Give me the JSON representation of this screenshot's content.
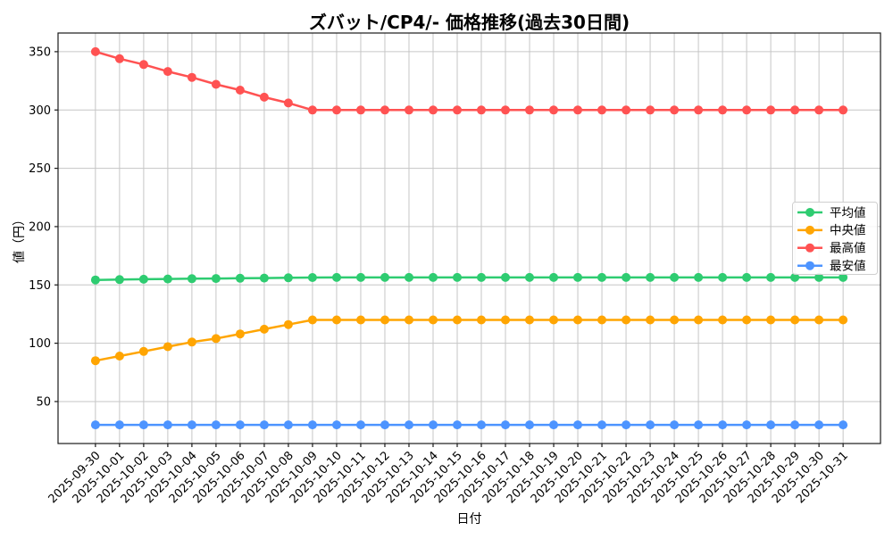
{
  "page": {
    "background": "#ffffff"
  },
  "chart_data": {
    "type": "line",
    "title": "ズバット/CP4/- 価格推移(過去30日間)",
    "xlabel": "日付",
    "ylabel": "値（円）",
    "grid": true,
    "legend_loc": "center right",
    "x_tick_rotation": 45,
    "ylim": [
      14,
      366
    ],
    "yticks": [
      50,
      100,
      150,
      200,
      250,
      300,
      350
    ],
    "x": [
      "2025-09-30",
      "2025-10-01",
      "2025-10-02",
      "2025-10-03",
      "2025-10-04",
      "2025-10-05",
      "2025-10-06",
      "2025-10-07",
      "2025-10-08",
      "2025-10-09",
      "2025-10-10",
      "2025-10-11",
      "2025-10-12",
      "2025-10-13",
      "2025-10-14",
      "2025-10-15",
      "2025-10-16",
      "2025-10-17",
      "2025-10-18",
      "2025-10-19",
      "2025-10-20",
      "2025-10-21",
      "2025-10-22",
      "2025-10-23",
      "2025-10-24",
      "2025-10-25",
      "2025-10-26",
      "2025-10-27",
      "2025-10-28",
      "2025-10-29",
      "2025-10-30",
      "2025-10-31"
    ],
    "series": [
      {
        "key": "average",
        "name": "平均値",
        "color": "#2ecc71",
        "values": [
          154.3,
          154.6,
          154.9,
          155.1,
          155.3,
          155.5,
          155.7,
          155.9,
          156.1,
          156.3,
          156.4,
          156.4,
          156.4,
          156.4,
          156.4,
          156.4,
          156.4,
          156.4,
          156.4,
          156.4,
          156.4,
          156.4,
          156.4,
          156.4,
          156.4,
          156.4,
          156.4,
          156.4,
          156.4,
          156.4,
          156.4,
          156.4
        ]
      },
      {
        "key": "median",
        "name": "中央値",
        "color": "#ffa502",
        "values": [
          85,
          89,
          93,
          97,
          101,
          104,
          108,
          112,
          116,
          120,
          120,
          120,
          120,
          120,
          120,
          120,
          120,
          120,
          120,
          120,
          120,
          120,
          120,
          120,
          120,
          120,
          120,
          120,
          120,
          120,
          120,
          120
        ]
      },
      {
        "key": "max",
        "name": "最高値",
        "color": "#ff5252",
        "values": [
          350,
          344,
          339,
          333,
          328,
          322,
          317,
          311,
          306,
          300,
          300,
          300,
          300,
          300,
          300,
          300,
          300,
          300,
          300,
          300,
          300,
          300,
          300,
          300,
          300,
          300,
          300,
          300,
          300,
          300,
          300,
          300
        ]
      },
      {
        "key": "min",
        "name": "最安値",
        "color": "#4d94ff",
        "values": [
          30,
          30,
          30,
          30,
          30,
          30,
          30,
          30,
          30,
          30,
          30,
          30,
          30,
          30,
          30,
          30,
          30,
          30,
          30,
          30,
          30,
          30,
          30,
          30,
          30,
          30,
          30,
          30,
          30,
          30,
          30,
          30
        ]
      }
    ],
    "style": {
      "grid_color": "#c6c6c6",
      "spine_color": "#1a1a1a",
      "legend_border": "#cfcfcf",
      "legend_bg": "rgba(255,255,255,0.85)"
    }
  }
}
